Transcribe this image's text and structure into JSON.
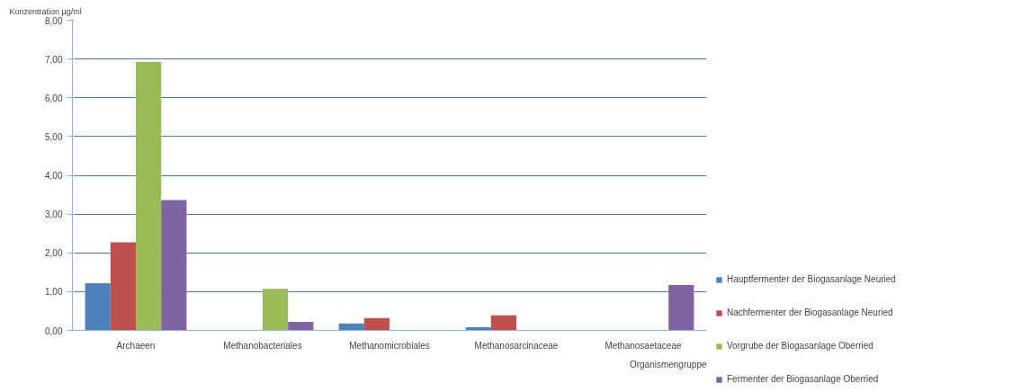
{
  "chart_data": {
    "type": "bar",
    "ylabel": "Konzentration µg/ml",
    "xlabel": "Organismengruppe",
    "categories": [
      "Archaeen",
      "Methanobacteriales",
      "Methanomicrobiales",
      "Methanosarcinaceae",
      "Methanosaetaceae"
    ],
    "series": [
      {
        "name": "Hauptfermenter der Biogasanlage Neuried",
        "color": "#4f81bd",
        "values": [
          1.22,
          null,
          0.18,
          0.08,
          null
        ]
      },
      {
        "name": "Nachfermenter der Biogasanlage Neuried",
        "color": "#c0504d",
        "values": [
          2.27,
          null,
          0.32,
          0.39,
          null
        ]
      },
      {
        "name": "Vorgrube der Biogasanlage Oberried",
        "color": "#9bbb59",
        "values": [
          6.93,
          1.07,
          null,
          null,
          null
        ]
      },
      {
        "name": "Fermenter der Biogasanlage Oberried",
        "color": "#8064a2",
        "values": [
          3.36,
          0.22,
          null,
          null,
          1.17
        ]
      }
    ],
    "ylim": [
      0,
      8
    ],
    "yticks": [
      {
        "value": 0,
        "label": "0,00"
      },
      {
        "value": 1,
        "label": "1,00"
      },
      {
        "value": 2,
        "label": "2,00"
      },
      {
        "value": 3,
        "label": "3,00"
      },
      {
        "value": 4,
        "label": "4,00"
      },
      {
        "value": 5,
        "label": "5,00"
      },
      {
        "value": 6,
        "label": "6,00"
      },
      {
        "value": 7,
        "label": "7,00"
      },
      {
        "value": 8,
        "label": "8,00"
      }
    ],
    "grid": "y",
    "legend": "right"
  }
}
